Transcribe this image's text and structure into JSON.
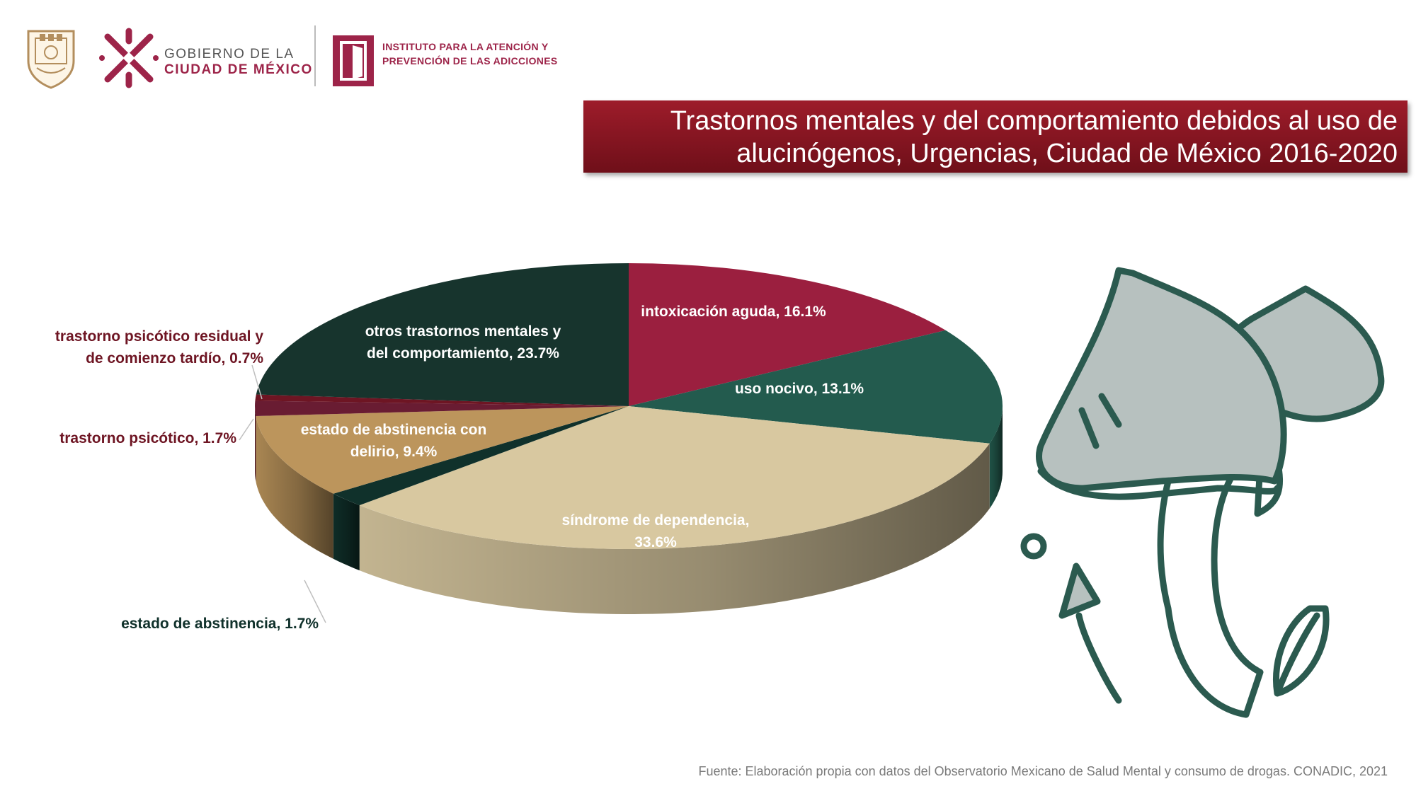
{
  "header": {
    "gov_line1": "GOBIERNO DE LA",
    "gov_line2": "CIUDAD DE MÉXICO",
    "inst_line1": "INSTITUTO PARA LA ATENCIÓN Y",
    "inst_line2": "PREVENCIÓN DE LAS ADICCIONES"
  },
  "title_line1": "Trastornos mentales y del comportamiento debidos al uso de",
  "title_line2": "alucinógenos, Urgencias, Ciudad de México 2016-2020",
  "source": "Fuente: Elaboración propia con datos del Observatorio Mexicano de Salud Mental y consumo de drogas. CONADIC, 2021",
  "illustration": "mushrooms-illustration",
  "chart_data": {
    "type": "pie",
    "style": "3d",
    "unit": "%",
    "slices": [
      {
        "label": "intoxicación aguda",
        "value": 16.1,
        "color": "#9b1f3f",
        "label_lines": [
          "intoxicación aguda, 16.1%"
        ]
      },
      {
        "label": "uso nocivo",
        "value": 13.1,
        "color": "#235b4e",
        "label_lines": [
          "uso nocivo, 13.1%"
        ]
      },
      {
        "label": "síndrome de dependencia",
        "value": 33.6,
        "color": "#d8c8a0",
        "label_lines": [
          "síndrome de dependencia,",
          "33.6%"
        ]
      },
      {
        "label": "estado de abstinencia",
        "value": 1.7,
        "color": "#10312b",
        "label_lines": [
          "estado de abstinencia, 1.7%"
        ]
      },
      {
        "label": "estado de abstinencia con delirio",
        "value": 9.4,
        "color": "#bc955c",
        "label_lines": [
          "estado de abstinencia con",
          "delirio, 9.4%"
        ]
      },
      {
        "label": "trastorno psicótico",
        "value": 1.7,
        "color": "#691c32",
        "label_lines": [
          "trastorno psicótico, 1.7%"
        ]
      },
      {
        "label": "trastorno psicótico residual y de comienzo tardío",
        "value": 0.7,
        "color": "#6e1523",
        "label_lines": [
          "trastorno psicótico residual y",
          "de comienzo tardío, 0.7%"
        ]
      },
      {
        "label": "otros trastornos mentales y del comportamiento",
        "value": 23.7,
        "color": "#17342d",
        "label_lines": [
          "otros trastornos mentales y",
          "del comportamiento, 23.7%"
        ]
      }
    ]
  }
}
